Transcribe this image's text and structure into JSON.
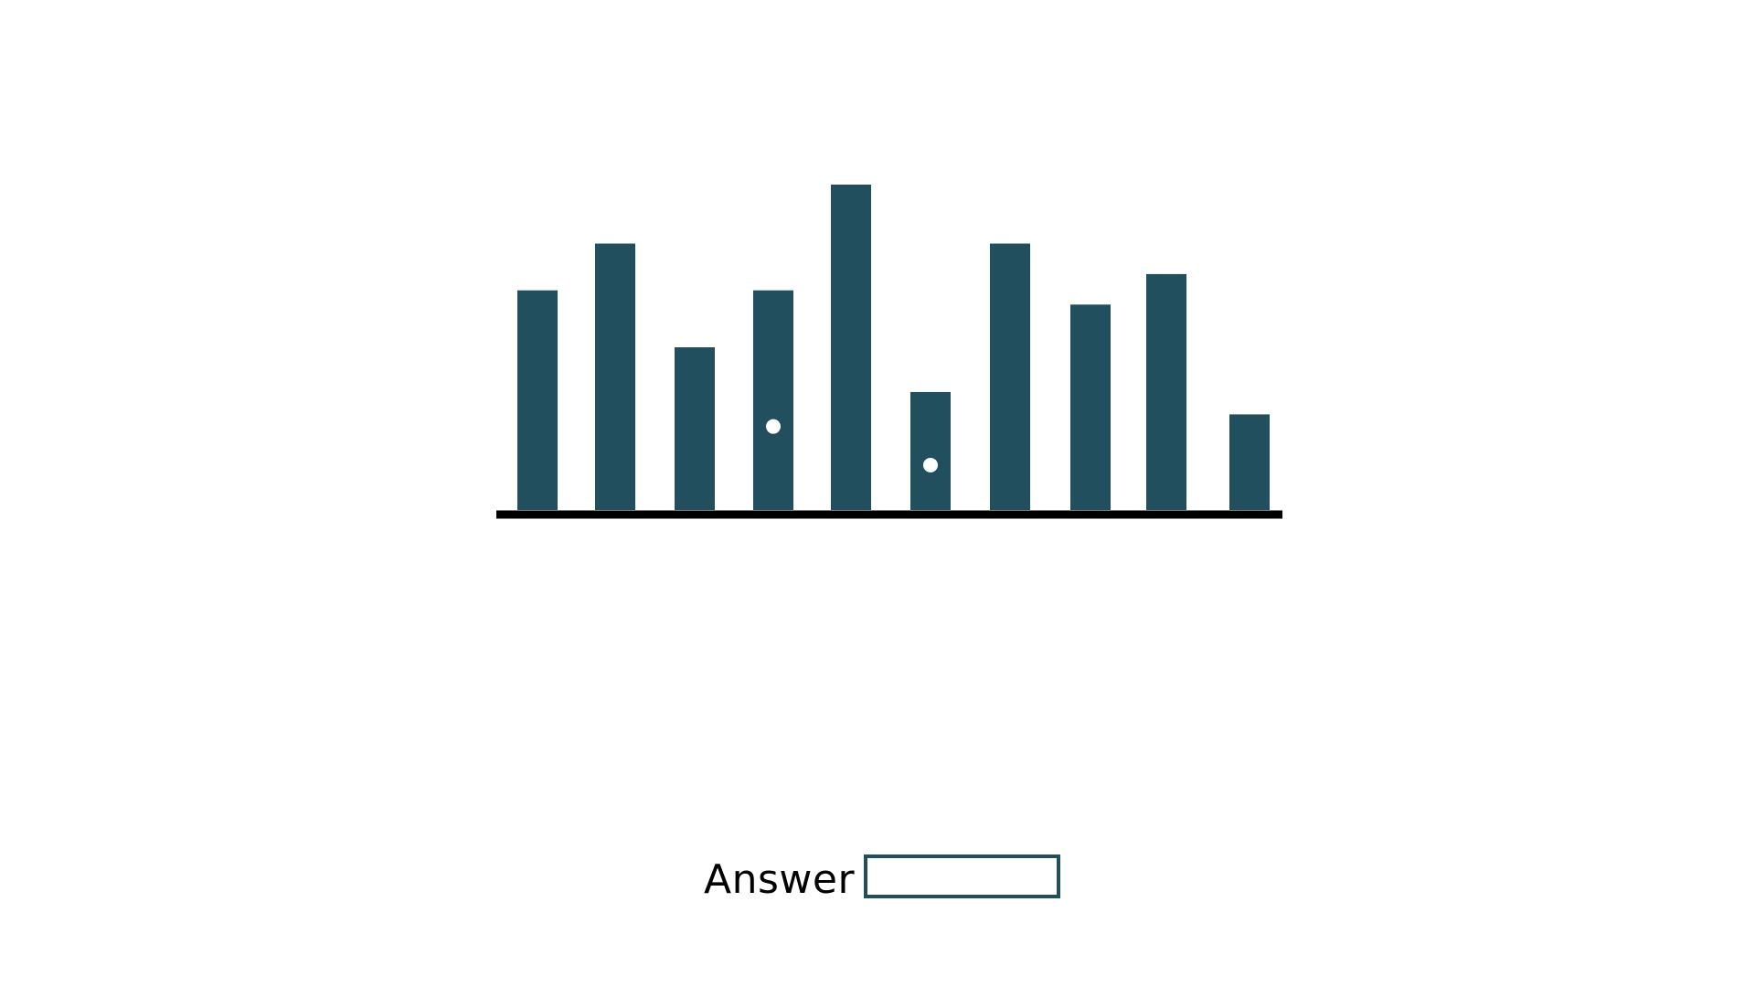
{
  "colors": {
    "bar": "#214f5e",
    "axis": "#000000",
    "marker": "#ffffff",
    "input_border": "#214f5e"
  },
  "chart_data": {
    "type": "bar",
    "title": "",
    "xlabel": "",
    "ylabel": "",
    "ylim": [
      0,
      100
    ],
    "grid": false,
    "legend": "none",
    "values": [
      54,
      65.5,
      40,
      54,
      80,
      29,
      65.5,
      50.5,
      58,
      23.5
    ],
    "marked_bar_indices": [
      3,
      5
    ]
  },
  "answer": {
    "label": "Answer",
    "value": ""
  }
}
